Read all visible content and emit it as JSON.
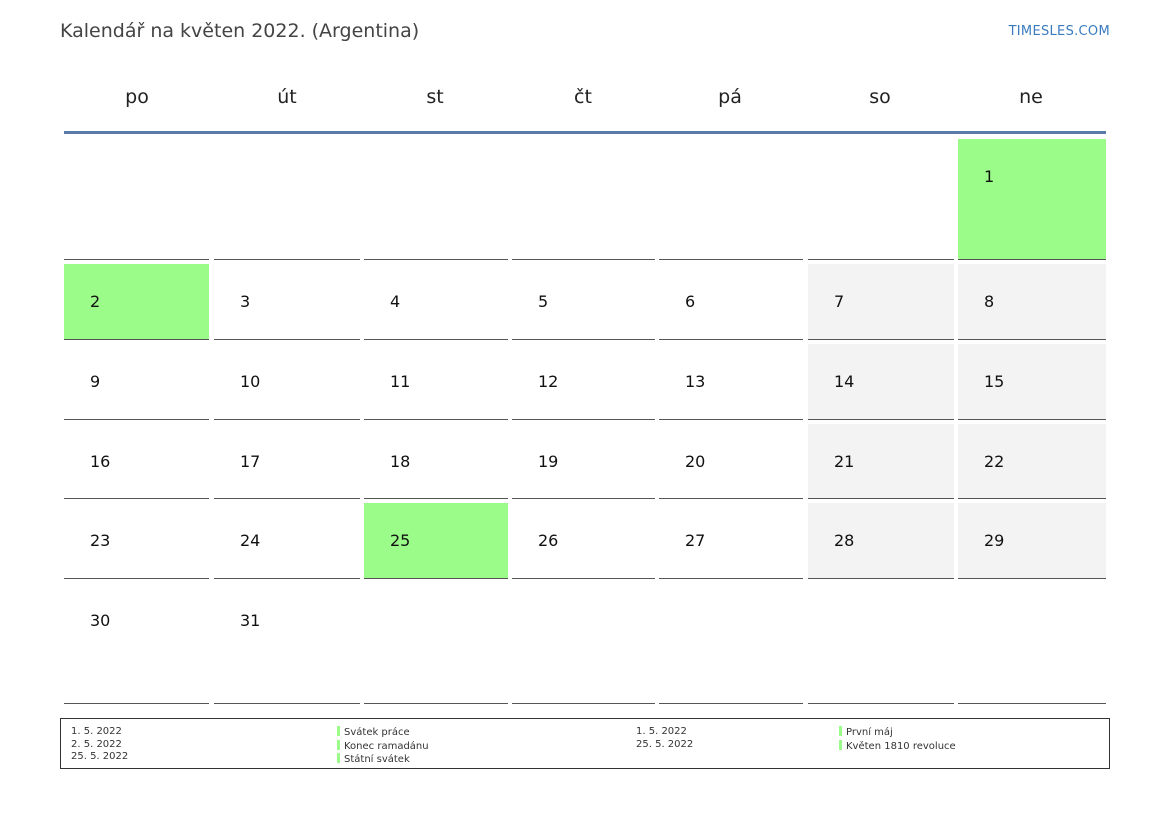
{
  "header": {
    "title": "Kalendář na květen 2022. (Argentina)",
    "brand": "TIMESLES.COM"
  },
  "weekdays": [
    "po",
    "út",
    "st",
    "čt",
    "pá",
    "so",
    "ne"
  ],
  "calendar": {
    "rows": [
      [
        "",
        "",
        "",
        "",
        "",
        "",
        "1"
      ],
      [
        "2",
        "3",
        "4",
        "5",
        "6",
        "7",
        "8"
      ],
      [
        "9",
        "10",
        "11",
        "12",
        "13",
        "14",
        "15"
      ],
      [
        "16",
        "17",
        "18",
        "19",
        "20",
        "21",
        "22"
      ],
      [
        "23",
        "24",
        "25",
        "26",
        "27",
        "28",
        "29"
      ],
      [
        "30",
        "31",
        "",
        "",
        "",
        "",
        ""
      ]
    ],
    "holidays": [
      "1",
      "2",
      "25"
    ]
  },
  "legend": {
    "col1": [
      "1. 5. 2022",
      "2. 5. 2022",
      "25. 5. 2022"
    ],
    "col2": [
      "Svátek práce",
      "Konec ramadánu",
      "Státní svátek"
    ],
    "col3": [
      "1. 5. 2022",
      "25. 5. 2022"
    ],
    "col4": [
      "První máj",
      "Květen 1810 revoluce"
    ]
  },
  "colors": {
    "holiday": "#9cfc8a",
    "weekend": "#f3f3f3",
    "header_line": "#5b7aa8",
    "brand": "#3a7bbf"
  }
}
